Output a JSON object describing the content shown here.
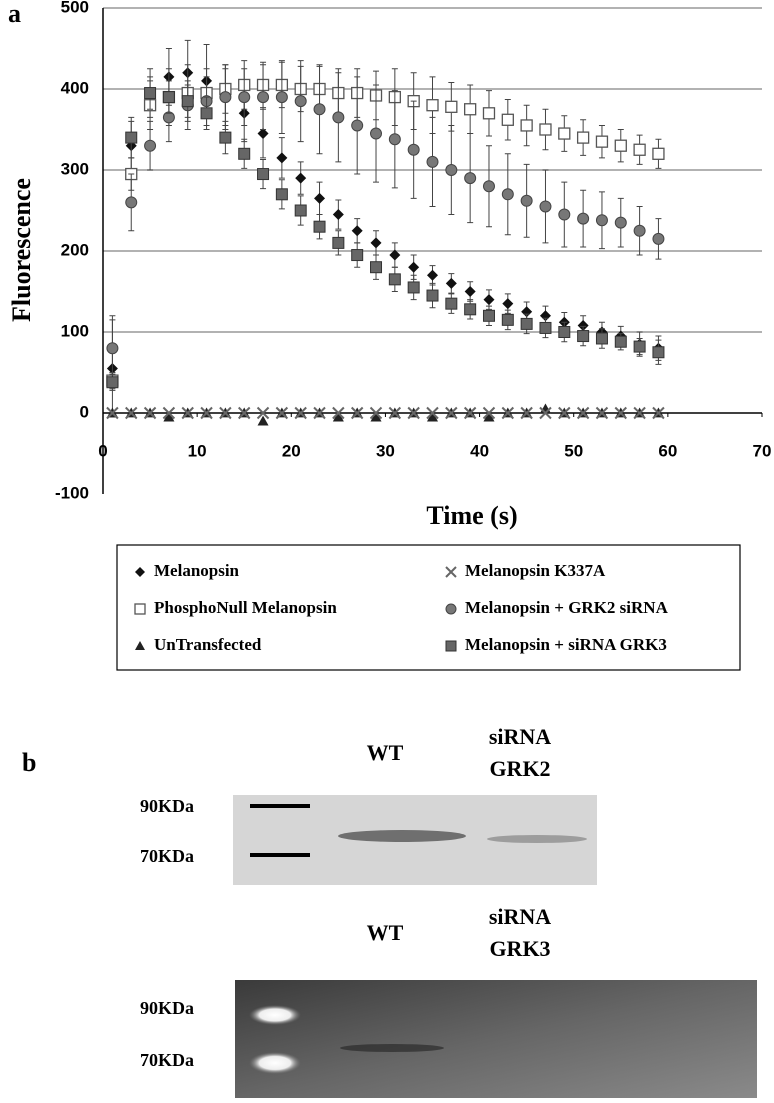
{
  "panel_a": {
    "label": "a"
  },
  "chart_data": {
    "type": "scatter",
    "x_label": "Time (s)",
    "y_label": "Fluorescence",
    "xlim": [
      0,
      70
    ],
    "xticks": [
      0,
      10,
      20,
      30,
      40,
      50,
      60,
      70
    ],
    "ylim": [
      -100,
      500
    ],
    "yticks": [
      -100,
      0,
      100,
      200,
      300,
      400,
      500
    ],
    "grid": true,
    "error_bars": true,
    "x": [
      1,
      3,
      5,
      7,
      9,
      11,
      13,
      15,
      17,
      19,
      21,
      23,
      25,
      27,
      29,
      31,
      33,
      35,
      37,
      39,
      41,
      43,
      45,
      47,
      49,
      51,
      53,
      55,
      57,
      59
    ],
    "series": [
      {
        "name": "Melanopsin",
        "marker": "diamond",
        "color": "#111111",
        "values": [
          55,
          330,
          395,
          415,
          420,
          410,
          390,
          370,
          345,
          315,
          290,
          265,
          245,
          225,
          210,
          195,
          180,
          170,
          160,
          150,
          140,
          135,
          125,
          120,
          112,
          108,
          100,
          95,
          85,
          80
        ],
        "errors": [
          60,
          30,
          30,
          35,
          40,
          45,
          40,
          35,
          30,
          25,
          20,
          20,
          18,
          15,
          15,
          15,
          15,
          12,
          12,
          12,
          12,
          12,
          12,
          12,
          12,
          12,
          12,
          12,
          15,
          15
        ]
      },
      {
        "name": "PhosphoNull Melanopsin",
        "marker": "square-open",
        "color": "#555555",
        "values": [
          40,
          295,
          380,
          390,
          395,
          395,
          400,
          405,
          405,
          405,
          400,
          400,
          395,
          395,
          392,
          390,
          385,
          380,
          378,
          375,
          370,
          362,
          355,
          350,
          345,
          340,
          335,
          330,
          325,
          320
        ],
        "errors": [
          10,
          20,
          30,
          35,
          35,
          30,
          30,
          30,
          28,
          28,
          28,
          28,
          30,
          30,
          30,
          35,
          35,
          35,
          30,
          30,
          28,
          25,
          25,
          25,
          22,
          22,
          20,
          20,
          18,
          18
        ]
      },
      {
        "name": "UnTransfected",
        "marker": "triangle",
        "color": "#222222",
        "values": [
          0,
          0,
          0,
          -5,
          0,
          0,
          0,
          0,
          -10,
          0,
          0,
          0,
          -5,
          0,
          -5,
          0,
          0,
          -5,
          0,
          0,
          -5,
          0,
          0,
          5,
          0,
          0,
          0,
          0,
          0,
          0
        ]
      },
      {
        "name": "Melanopsin K337A",
        "marker": "cross",
        "color": "#666666",
        "values": [
          0,
          0,
          0,
          0,
          0,
          0,
          0,
          0,
          0,
          0,
          0,
          0,
          0,
          0,
          0,
          0,
          0,
          0,
          0,
          0,
          0,
          0,
          0,
          0,
          0,
          0,
          0,
          0,
          0,
          0
        ]
      },
      {
        "name": "Melanopsin + GRK2 siRNA",
        "marker": "circle",
        "color": "#777777",
        "values": [
          80,
          260,
          330,
          365,
          380,
          385,
          390,
          390,
          390,
          390,
          385,
          375,
          365,
          355,
          345,
          338,
          325,
          310,
          300,
          290,
          280,
          270,
          262,
          255,
          245,
          240,
          238,
          235,
          225,
          215
        ],
        "errors": [
          40,
          35,
          30,
          30,
          30,
          30,
          35,
          35,
          40,
          45,
          50,
          55,
          55,
          60,
          60,
          60,
          60,
          55,
          55,
          55,
          50,
          50,
          45,
          45,
          40,
          35,
          35,
          30,
          30,
          25
        ]
      },
      {
        "name": "Melanopsin + siRNA GRK3",
        "marker": "square",
        "color": "#666666",
        "values": [
          38,
          340,
          395,
          390,
          385,
          370,
          340,
          320,
          295,
          270,
          250,
          230,
          210,
          195,
          180,
          165,
          155,
          145,
          135,
          128,
          120,
          115,
          110,
          105,
          100,
          95,
          92,
          88,
          82,
          75
        ],
        "errors": [
          10,
          25,
          20,
          20,
          20,
          20,
          20,
          18,
          18,
          18,
          18,
          15,
          15,
          15,
          15,
          15,
          15,
          15,
          12,
          12,
          12,
          12,
          12,
          12,
          12,
          12,
          12,
          10,
          10,
          15
        ]
      }
    ]
  },
  "panel_b": {
    "label": "b",
    "blots": [
      {
        "lanes": [
          [
            "WT"
          ],
          [
            "siRNA",
            "GRK2"
          ]
        ],
        "markers": [
          "90KDa",
          "70KDa"
        ]
      },
      {
        "lanes": [
          [
            "WT"
          ],
          [
            "siRNA",
            "GRK3"
          ]
        ],
        "markers": [
          "90KDa",
          "70KDa"
        ]
      }
    ]
  }
}
